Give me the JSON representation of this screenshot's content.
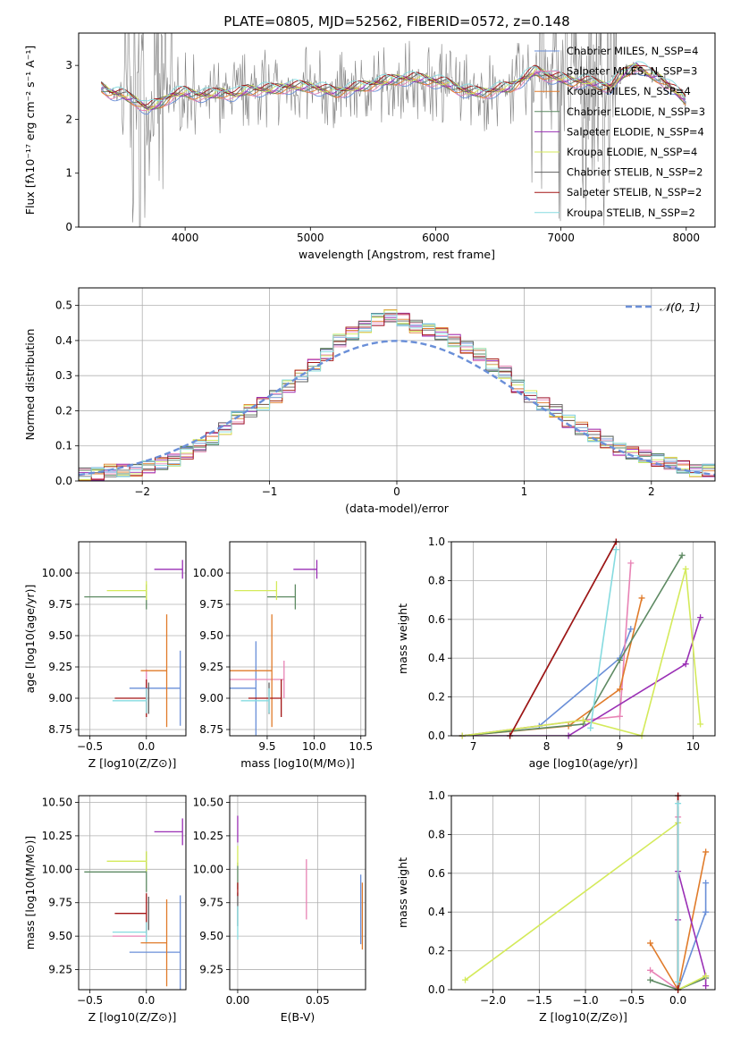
{
  "figure_title": "PLATE=0805, MJD=52562, FIBERID=0572, z=0.148",
  "colors": {
    "chabrier_miles": "#6a8fd8",
    "salpeter_miles": "#e883b5",
    "kroupa_miles": "#e07b2a",
    "chabrier_elodie": "#5e8a63",
    "salpeter_elodie": "#9a2fb5",
    "kroupa_elodie": "#d4ea5a",
    "chabrier_stelib": "#606060",
    "salpeter_stelib": "#a31515",
    "kroupa_stelib": "#86dbe0",
    "data": "#808080"
  },
  "chart_data": [
    {
      "id": "spectrum",
      "type": "line",
      "xlabel": "wavelength [Angstrom, rest frame]",
      "ylabel": "Flux [fλ10⁻¹⁷ erg cm⁻² s⁻¹ A⁻¹]",
      "xlim": [
        3150,
        8230
      ],
      "ylim": [
        0,
        3.6
      ],
      "xticks": [
        "4000",
        "5000",
        "6000",
        "7000",
        "8000"
      ],
      "yticks": [
        "0",
        "1",
        "2",
        "3"
      ],
      "legend": [
        {
          "label": "Chabrier MILES, N_SSP=4",
          "color": "#6a8fd8"
        },
        {
          "label": "Salpeter MILES, N_SSP=3",
          "color": "#e883b5"
        },
        {
          "label": "Kroupa MILES, N_SSP=4",
          "color": "#e07b2a"
        },
        {
          "label": "Chabrier ELODIE, N_SSP=3",
          "color": "#5e8a63"
        },
        {
          "label": "Salpeter ELODIE, N_SSP=4",
          "color": "#9a2fb5"
        },
        {
          "label": "Kroupa ELODIE, N_SSP=4",
          "color": "#d4ea5a"
        },
        {
          "label": "Chabrier STELIB, N_SSP=2",
          "color": "#606060"
        },
        {
          "label": "Salpeter STELIB, N_SSP=2",
          "color": "#a31515"
        },
        {
          "label": "Kroupa STELIB, N_SSP=2",
          "color": "#86dbe0"
        }
      ],
      "model_continuum": [
        [
          3330,
          2.6
        ],
        [
          3400,
          2.5
        ],
        [
          3500,
          2.45
        ],
        [
          3600,
          2.35
        ],
        [
          3700,
          2.2
        ],
        [
          3800,
          2.3
        ],
        [
          3900,
          2.45
        ],
        [
          4000,
          2.5
        ],
        [
          4100,
          2.45
        ],
        [
          4200,
          2.45
        ],
        [
          4300,
          2.5
        ],
        [
          4400,
          2.45
        ],
        [
          4500,
          2.55
        ],
        [
          4600,
          2.55
        ],
        [
          4700,
          2.55
        ],
        [
          4800,
          2.6
        ],
        [
          4900,
          2.6
        ],
        [
          5000,
          2.6
        ],
        [
          5100,
          2.55
        ],
        [
          5200,
          2.5
        ],
        [
          5300,
          2.55
        ],
        [
          5400,
          2.6
        ],
        [
          5500,
          2.65
        ],
        [
          5600,
          2.7
        ],
        [
          5700,
          2.75
        ],
        [
          5800,
          2.75
        ],
        [
          5900,
          2.75
        ],
        [
          6000,
          2.7
        ],
        [
          6100,
          2.65
        ],
        [
          6200,
          2.55
        ],
        [
          6300,
          2.5
        ],
        [
          6400,
          2.5
        ],
        [
          6500,
          2.55
        ],
        [
          6600,
          2.6
        ],
        [
          6700,
          2.75
        ],
        [
          6800,
          2.9
        ],
        [
          6900,
          2.8
        ],
        [
          7000,
          2.75
        ],
        [
          7100,
          2.7
        ],
        [
          7200,
          2.7
        ],
        [
          7300,
          2.65
        ],
        [
          7400,
          2.6
        ],
        [
          7500,
          2.85
        ],
        [
          7600,
          3.0
        ],
        [
          7700,
          2.85
        ],
        [
          7800,
          2.75
        ],
        [
          7900,
          2.55
        ],
        [
          8000,
          2.35
        ]
      ]
    },
    {
      "id": "residuals",
      "type": "line",
      "xlabel": "(data-model)/error",
      "ylabel": "Normed distribution",
      "xlim": [
        -2.5,
        2.5
      ],
      "ylim": [
        0,
        0.55
      ],
      "xticks": [
        "−2",
        "−1",
        "0",
        "1",
        "2"
      ],
      "yticks": [
        "0.0",
        "0.1",
        "0.2",
        "0.3",
        "0.4",
        "0.5"
      ],
      "legend": [
        {
          "label": "𝒩(0, 1)",
          "color": "#6a8fd8"
        }
      ],
      "bin_edges": [
        -2.5,
        -2.4,
        -2.3,
        -2.2,
        -2.1,
        -2.0,
        -1.9,
        -1.8,
        -1.7,
        -1.6,
        -1.5,
        -1.4,
        -1.3,
        -1.2,
        -1.1,
        -1.0,
        -0.9,
        -0.8,
        -0.7,
        -0.6,
        -0.5,
        -0.4,
        -0.3,
        -0.2,
        -0.1,
        0.0,
        0.1,
        0.2,
        0.3,
        0.4,
        0.5,
        0.6,
        0.7,
        0.8,
        0.9,
        1.0,
        1.1,
        1.2,
        1.3,
        1.4,
        1.5,
        1.6,
        1.7,
        1.8,
        1.9,
        2.0,
        2.1,
        2.2,
        2.3,
        2.4,
        2.5
      ],
      "hist_base": [
        0.02,
        0.02,
        0.03,
        0.03,
        0.03,
        0.04,
        0.05,
        0.06,
        0.08,
        0.1,
        0.12,
        0.15,
        0.18,
        0.2,
        0.22,
        0.24,
        0.27,
        0.3,
        0.33,
        0.36,
        0.4,
        0.42,
        0.44,
        0.46,
        0.47,
        0.46,
        0.44,
        0.43,
        0.42,
        0.4,
        0.38,
        0.36,
        0.33,
        0.31,
        0.27,
        0.24,
        0.22,
        0.2,
        0.17,
        0.15,
        0.13,
        0.11,
        0.09,
        0.08,
        0.07,
        0.06,
        0.05,
        0.04,
        0.03,
        0.03
      ]
    },
    {
      "id": "age-vs-Z",
      "type": "errorbar",
      "xlabel": "Z [log10(Z/Z⊙)]",
      "ylabel": "age  [log10(age/yr)]",
      "xlim": [
        -0.6,
        0.35
      ],
      "ylim": [
        8.7,
        10.25
      ],
      "xticks": [
        "−0.5",
        "0.0"
      ],
      "yticks": [
        "8.75",
        "9.00",
        "9.25",
        "9.50",
        "9.75",
        "10.00"
      ],
      "points": [
        {
          "x": 0.3,
          "y": 9.08,
          "xerr": 0.45,
          "yerr": 0.6,
          "color": "#6a8fd8"
        },
        {
          "x": 0.0,
          "y": 9.08,
          "xerr": 0.0,
          "yerr": 0.3,
          "color": "#e883b5"
        },
        {
          "x": 0.18,
          "y": 9.22,
          "xerr": 0.23,
          "yerr": 0.9,
          "color": "#e07b2a"
        },
        {
          "x": 0.0,
          "y": 9.81,
          "xerr": 0.55,
          "yerr": 0.2,
          "color": "#5e8a63"
        },
        {
          "x": 0.32,
          "y": 10.03,
          "xerr": 0.25,
          "yerr": 0.15,
          "color": "#9a2fb5"
        },
        {
          "x": 0.0,
          "y": 9.86,
          "xerr": 0.35,
          "yerr": 0.15,
          "color": "#d4ea5a"
        },
        {
          "x": 0.02,
          "y": 9.0,
          "xerr": 0.0,
          "yerr": 0.25,
          "color": "#606060"
        },
        {
          "x": 0.0,
          "y": 9.0,
          "xerr": 0.28,
          "yerr": 0.3,
          "color": "#a31515"
        },
        {
          "x": 0.0,
          "y": 8.98,
          "xerr": 0.3,
          "yerr": 0.2,
          "color": "#86dbe0"
        }
      ]
    },
    {
      "id": "age-vs-mass",
      "type": "errorbar",
      "xlabel": "mass [log10(M/M⊙)]",
      "ylabel": "",
      "xlim": [
        9.1,
        10.55
      ],
      "ylim": [
        8.7,
        10.25
      ],
      "xticks": [
        "9.5",
        "10.0",
        "10.5"
      ],
      "yticks": [
        "8.75",
        "9.00",
        "9.25",
        "9.50",
        "9.75",
        "10.00"
      ],
      "points": [
        {
          "x": 9.38,
          "y": 9.08,
          "xerr": 0.7,
          "yerr": 0.75,
          "color": "#6a8fd8"
        },
        {
          "x": 9.68,
          "y": 9.15,
          "xerr": 0.6,
          "yerr": 0.3,
          "color": "#e883b5"
        },
        {
          "x": 9.55,
          "y": 9.22,
          "xerr": 0.6,
          "yerr": 0.9,
          "color": "#e07b2a"
        },
        {
          "x": 9.8,
          "y": 9.81,
          "xerr": 0.3,
          "yerr": 0.2,
          "color": "#5e8a63"
        },
        {
          "x": 10.03,
          "y": 10.03,
          "xerr": 0.25,
          "yerr": 0.15,
          "color": "#9a2fb5"
        },
        {
          "x": 9.6,
          "y": 9.86,
          "xerr": 0.45,
          "yerr": 0.15,
          "color": "#d4ea5a"
        },
        {
          "x": 9.52,
          "y": 9.0,
          "xerr": 0.0,
          "yerr": 0.25,
          "color": "#606060"
        },
        {
          "x": 9.65,
          "y": 9.0,
          "xerr": 0.35,
          "yerr": 0.3,
          "color": "#a31515"
        },
        {
          "x": 9.52,
          "y": 8.98,
          "xerr": 0.3,
          "yerr": 0.2,
          "color": "#86dbe0"
        }
      ]
    },
    {
      "id": "massweight-vs-age",
      "type": "line",
      "xlabel": "age  [log10(age/yr)]",
      "ylabel": "mass weight",
      "xlim": [
        6.7,
        10.3
      ],
      "ylim": [
        0,
        1.0
      ],
      "xticks": [
        "7",
        "8",
        "9",
        "10"
      ],
      "yticks": [
        "0.0",
        "0.2",
        "0.4",
        "0.6",
        "0.8",
        "1.0"
      ],
      "series": [
        {
          "color": "#6a8fd8",
          "x": [
            6.85,
            7.9,
            9.0,
            9.15
          ],
          "y": [
            0.0,
            0.05,
            0.4,
            0.55
          ]
        },
        {
          "color": "#e883b5",
          "x": [
            6.85,
            8.5,
            9.0,
            9.15
          ],
          "y": [
            0.0,
            0.08,
            0.1,
            0.89
          ]
        },
        {
          "color": "#e07b2a",
          "x": [
            6.85,
            8.3,
            9.0,
            9.3
          ],
          "y": [
            0.0,
            0.05,
            0.24,
            0.71
          ]
        },
        {
          "color": "#5e8a63",
          "x": [
            6.85,
            8.5,
            9.0,
            9.85
          ],
          "y": [
            0.0,
            0.06,
            0.39,
            0.93
          ]
        },
        {
          "color": "#9a2fb5",
          "x": [
            6.85,
            8.3,
            9.9,
            10.1
          ],
          "y": [
            0.0,
            0.0,
            0.37,
            0.61
          ]
        },
        {
          "color": "#d4ea5a",
          "x": [
            6.85,
            8.5,
            9.3,
            9.9,
            10.1
          ],
          "y": [
            0.0,
            0.08,
            0.0,
            0.86,
            0.06
          ]
        },
        {
          "color": "#606060",
          "x": [
            7.5,
            8.95
          ],
          "y": [
            0.0,
            1.0
          ]
        },
        {
          "color": "#a31515",
          "x": [
            7.5,
            8.95
          ],
          "y": [
            0.0,
            1.0
          ]
        },
        {
          "color": "#86dbe0",
          "x": [
            8.6,
            8.95
          ],
          "y": [
            0.04,
            0.96
          ]
        }
      ]
    },
    {
      "id": "mass-vs-Z",
      "type": "errorbar",
      "xlabel": "Z [log10(Z/Z⊙)]",
      "ylabel": "mass [log10(M/M⊙)]",
      "xlim": [
        -0.6,
        0.35
      ],
      "ylim": [
        9.1,
        10.55
      ],
      "xticks": [
        "−0.5",
        "0.0"
      ],
      "yticks": [
        "9.25",
        "9.50",
        "9.75",
        "10.00",
        "10.25",
        "10.50"
      ],
      "points": [
        {
          "x": 0.3,
          "y": 9.38,
          "xerr": 0.45,
          "yerr": 0.85,
          "color": "#6a8fd8"
        },
        {
          "x": 0.0,
          "y": 9.5,
          "xerr": 0.3,
          "yerr": 0.1,
          "color": "#e883b5"
        },
        {
          "x": 0.18,
          "y": 9.45,
          "xerr": 0.23,
          "yerr": 0.65,
          "color": "#e07b2a"
        },
        {
          "x": 0.0,
          "y": 9.98,
          "xerr": 0.55,
          "yerr": 0.3,
          "color": "#5e8a63"
        },
        {
          "x": 0.32,
          "y": 10.28,
          "xerr": 0.25,
          "yerr": 0.2,
          "color": "#9a2fb5"
        },
        {
          "x": 0.0,
          "y": 10.06,
          "xerr": 0.35,
          "yerr": 0.15,
          "color": "#d4ea5a"
        },
        {
          "x": 0.02,
          "y": 9.67,
          "xerr": 0.0,
          "yerr": 0.25,
          "color": "#606060"
        },
        {
          "x": 0.0,
          "y": 9.67,
          "xerr": 0.28,
          "yerr": 0.3,
          "color": "#a31515"
        },
        {
          "x": 0.0,
          "y": 9.53,
          "xerr": 0.3,
          "yerr": 0.15,
          "color": "#86dbe0"
        }
      ]
    },
    {
      "id": "mass-vs-ebv",
      "type": "errorbar",
      "xlabel": "E(B-V)",
      "ylabel": "",
      "xlim": [
        -0.005,
        0.08
      ],
      "ylim": [
        9.1,
        10.55
      ],
      "xticks": [
        "0.00",
        "0.05"
      ],
      "yticks": [
        "9.25",
        "9.50",
        "9.75",
        "10.00",
        "10.25",
        "10.50"
      ],
      "points": [
        {
          "x": 0.077,
          "y": 9.7,
          "yerr": 0.52,
          "color": "#6a8fd8"
        },
        {
          "x": 0.043,
          "y": 9.85,
          "yerr": 0.45,
          "color": "#e883b5"
        },
        {
          "x": 0.078,
          "y": 9.65,
          "yerr": 0.5,
          "color": "#e07b2a"
        },
        {
          "x": 0.0,
          "y": 9.95,
          "yerr": 0.2,
          "color": "#5e8a63"
        },
        {
          "x": 0.0,
          "y": 10.3,
          "yerr": 0.2,
          "color": "#9a2fb5"
        },
        {
          "x": 0.0,
          "y": 10.1,
          "yerr": 0.15,
          "color": "#d4ea5a"
        },
        {
          "x": 0.0,
          "y": 9.7,
          "yerr": 0.25,
          "color": "#606060"
        },
        {
          "x": 0.0,
          "y": 9.85,
          "yerr": 0.1,
          "color": "#a31515"
        },
        {
          "x": 0.0,
          "y": 9.6,
          "yerr": 0.25,
          "color": "#86dbe0"
        }
      ]
    },
    {
      "id": "massweight-vs-Z",
      "type": "line",
      "xlabel": "Z [log10(Z/Z⊙)]",
      "ylabel": "mass weight",
      "xlim": [
        -2.45,
        0.4
      ],
      "ylim": [
        0,
        1.0
      ],
      "xticks": [
        "−2.0",
        "−1.5",
        "−1.0",
        "−0.5",
        "0.0"
      ],
      "yticks": [
        "0.0",
        "0.2",
        "0.4",
        "0.6",
        "0.8",
        "1.0"
      ],
      "series": [
        {
          "color": "#6a8fd8",
          "x": [
            0.0,
            0.3,
            0.3
          ],
          "y": [
            0.0,
            0.4,
            0.55
          ]
        },
        {
          "color": "#e883b5",
          "x": [
            -0.3,
            0.0,
            0.0
          ],
          "y": [
            0.1,
            0.0,
            0.89
          ]
        },
        {
          "color": "#e07b2a",
          "x": [
            -0.3,
            0.0,
            0.3
          ],
          "y": [
            0.24,
            0.0,
            0.71
          ]
        },
        {
          "color": "#5e8a63",
          "x": [
            -0.3,
            0.0,
            0.3
          ],
          "y": [
            0.05,
            0.0,
            0.06
          ]
        },
        {
          "color": "#9a2fb5",
          "x": [
            0.0,
            0.0,
            0.3,
            0.3
          ],
          "y": [
            0.36,
            0.61,
            0.07,
            0.02
          ]
        },
        {
          "color": "#d4ea5a",
          "x": [
            -2.3,
            0.0,
            0.0,
            0.3
          ],
          "y": [
            0.05,
            0.86,
            0.0,
            0.07
          ]
        },
        {
          "color": "#606060",
          "x": [
            0.0,
            0.0
          ],
          "y": [
            0.0,
            1.0
          ]
        },
        {
          "color": "#a31515",
          "x": [
            0.0,
            0.0
          ],
          "y": [
            0.0,
            1.0
          ]
        },
        {
          "color": "#86dbe0",
          "x": [
            0.0,
            0.0
          ],
          "y": [
            0.04,
            0.96
          ]
        }
      ]
    }
  ]
}
